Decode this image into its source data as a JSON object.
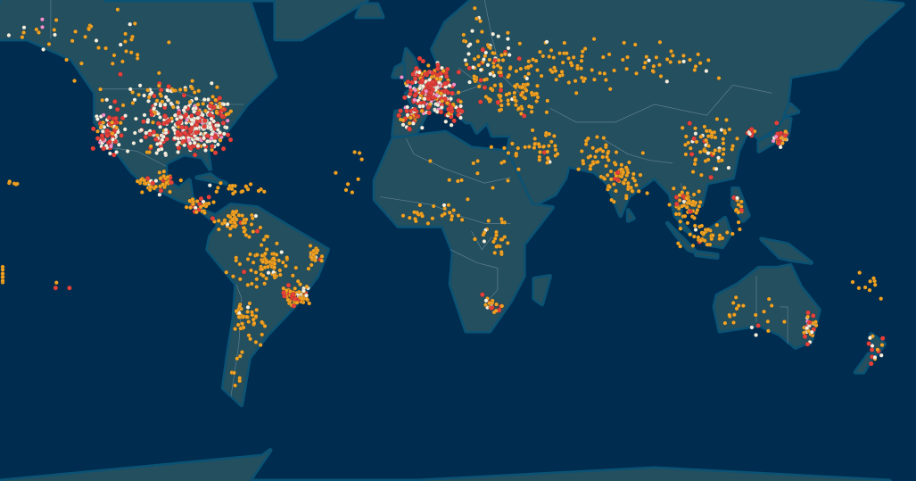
{
  "map": {
    "projection": "mercator",
    "ocean_color": "#002d4f",
    "land_color": "#234f5f",
    "coast_color": "#0b5274",
    "border_color": "#8aa0aa",
    "point_categories": [
      {
        "key": "orange",
        "color": "#f2a324"
      },
      {
        "key": "red",
        "color": "#e5403a"
      },
      {
        "key": "white",
        "color": "#f4efdf"
      },
      {
        "key": "pink",
        "color": "#f58fcb"
      }
    ]
  }
}
